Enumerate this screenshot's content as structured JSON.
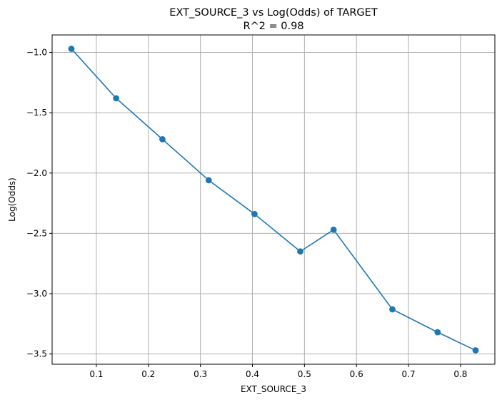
{
  "chart_data": {
    "type": "line",
    "title": "EXT_SOURCE_3 vs Log(Odds) of TARGET",
    "subtitle": "R^2 = 0.98",
    "xlabel": "EXT_SOURCE_3",
    "ylabel": "Log(Odds)",
    "xlim": [
      0.015,
      0.866
    ],
    "ylim": [
      -3.585,
      -0.855
    ],
    "xticks": [
      0.1,
      0.2,
      0.3,
      0.4,
      0.5,
      0.6,
      0.7,
      0.8
    ],
    "xtick_labels": [
      "0.1",
      "0.2",
      "0.3",
      "0.4",
      "0.5",
      "0.6",
      "0.7",
      "0.8"
    ],
    "yticks": [
      -1.0,
      -1.5,
      -2.0,
      -2.5,
      -3.0,
      -3.5
    ],
    "ytick_labels": [
      "−1.0",
      "−1.5",
      "−2.0",
      "−2.5",
      "−3.0",
      "−3.5"
    ],
    "grid": true,
    "series": [
      {
        "color": "#1f77b4",
        "marker": "circle",
        "x": [
          0.052,
          0.138,
          0.227,
          0.316,
          0.404,
          0.492,
          0.556,
          0.669,
          0.756,
          0.829
        ],
        "y": [
          -0.97,
          -1.38,
          -1.72,
          -2.06,
          -2.34,
          -2.65,
          -2.47,
          -3.13,
          -3.32,
          -3.47
        ]
      }
    ]
  }
}
